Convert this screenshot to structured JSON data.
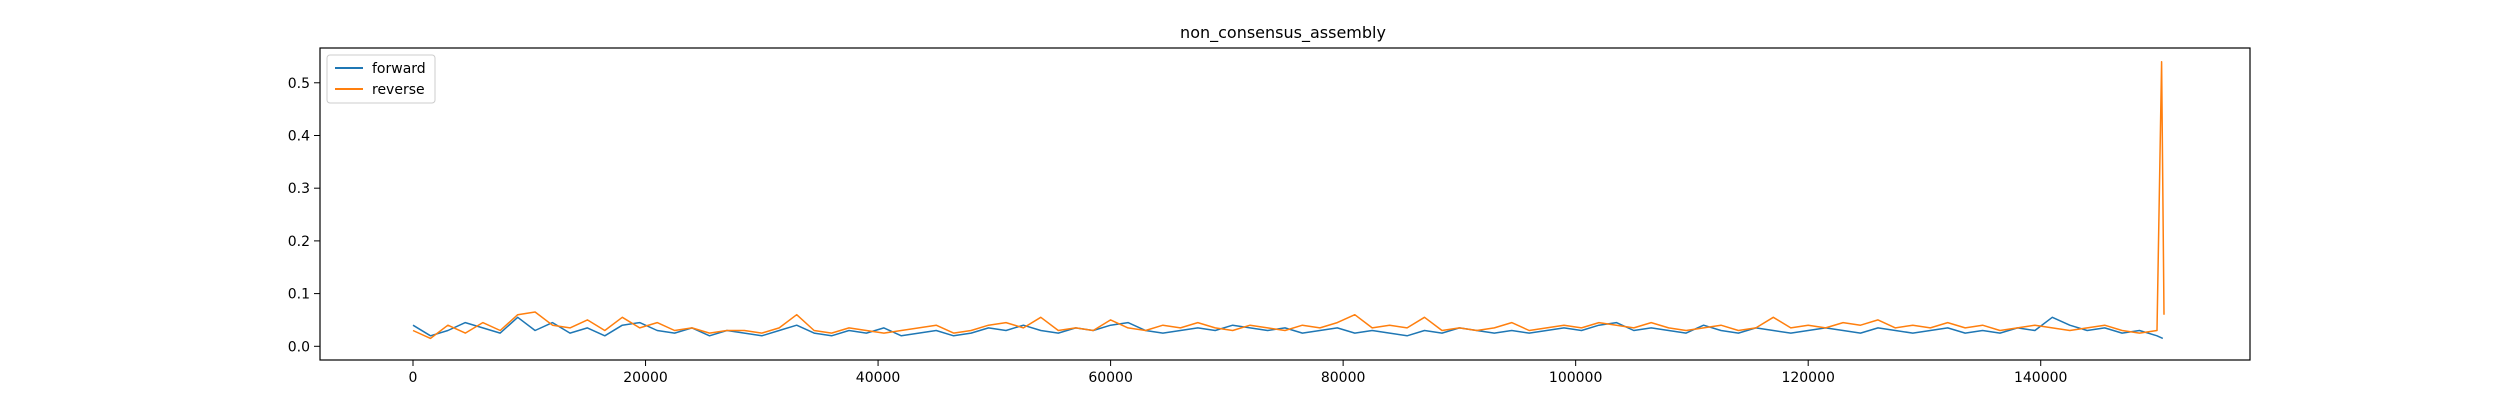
{
  "chart_data": {
    "type": "line",
    "title": "non_consensus_assembly",
    "xlabel": "",
    "ylabel": "",
    "xlim": [
      -8000,
      158000
    ],
    "ylim": [
      -0.026,
      0.566
    ],
    "x_ticks": [
      0,
      20000,
      40000,
      60000,
      80000,
      100000,
      120000,
      140000
    ],
    "x_tick_labels": [
      "0",
      "20000",
      "40000",
      "60000",
      "80000",
      "100000",
      "120000",
      "140000"
    ],
    "y_ticks": [
      0.0,
      0.1,
      0.2,
      0.3,
      0.4,
      0.5
    ],
    "y_tick_labels": [
      "0.0",
      "0.1",
      "0.2",
      "0.3",
      "0.4",
      "0.5"
    ],
    "grid": false,
    "legend": {
      "position": "top-left"
    },
    "series": [
      {
        "name": "forward",
        "color": "#1f77b4",
        "x": [
          0,
          1500,
          3000,
          4500,
          6000,
          7500,
          9000,
          10500,
          12000,
          13500,
          15000,
          16500,
          18000,
          19500,
          21000,
          22500,
          24000,
          25500,
          27000,
          28500,
          30000,
          31500,
          33000,
          34500,
          36000,
          37500,
          39000,
          40500,
          42000,
          43500,
          45000,
          46500,
          48000,
          49500,
          51000,
          52500,
          54000,
          55500,
          57000,
          58500,
          60000,
          61500,
          63000,
          64500,
          66000,
          67500,
          69000,
          70500,
          72000,
          73500,
          75000,
          76500,
          78000,
          79500,
          81000,
          82500,
          84000,
          85500,
          87000,
          88500,
          90000,
          91500,
          93000,
          94500,
          96000,
          97500,
          99000,
          100500,
          102000,
          103500,
          105000,
          106500,
          108000,
          109500,
          111000,
          112500,
          114000,
          115500,
          117000,
          118500,
          120000,
          121500,
          123000,
          124500,
          126000,
          127500,
          129000,
          130500,
          132000,
          133500,
          135000,
          136500,
          138000,
          139500,
          141000,
          142500,
          144000,
          145500,
          147000,
          148500,
          150000,
          150500
        ],
        "y": [
          0.04,
          0.02,
          0.03,
          0.045,
          0.035,
          0.025,
          0.055,
          0.03,
          0.045,
          0.025,
          0.035,
          0.02,
          0.04,
          0.045,
          0.03,
          0.025,
          0.035,
          0.02,
          0.03,
          0.025,
          0.02,
          0.03,
          0.04,
          0.025,
          0.02,
          0.03,
          0.025,
          0.035,
          0.02,
          0.025,
          0.03,
          0.02,
          0.025,
          0.035,
          0.03,
          0.04,
          0.03,
          0.025,
          0.035,
          0.03,
          0.04,
          0.045,
          0.03,
          0.025,
          0.03,
          0.035,
          0.03,
          0.04,
          0.035,
          0.03,
          0.035,
          0.025,
          0.03,
          0.035,
          0.025,
          0.03,
          0.025,
          0.02,
          0.03,
          0.025,
          0.035,
          0.03,
          0.025,
          0.03,
          0.025,
          0.03,
          0.035,
          0.03,
          0.04,
          0.045,
          0.03,
          0.035,
          0.03,
          0.025,
          0.04,
          0.03,
          0.025,
          0.035,
          0.03,
          0.025,
          0.03,
          0.035,
          0.03,
          0.025,
          0.035,
          0.03,
          0.025,
          0.03,
          0.035,
          0.025,
          0.03,
          0.025,
          0.035,
          0.03,
          0.055,
          0.04,
          0.03,
          0.035,
          0.025,
          0.03,
          0.02,
          0.015
        ]
      },
      {
        "name": "reverse",
        "color": "#ff7f0e",
        "x": [
          0,
          1500,
          3000,
          4500,
          6000,
          7500,
          9000,
          10500,
          12000,
          13500,
          15000,
          16500,
          18000,
          19500,
          21000,
          22500,
          24000,
          25500,
          27000,
          28500,
          30000,
          31500,
          33000,
          34500,
          36000,
          37500,
          39000,
          40500,
          42000,
          43500,
          45000,
          46500,
          48000,
          49500,
          51000,
          52500,
          54000,
          55500,
          57000,
          58500,
          60000,
          61500,
          63000,
          64500,
          66000,
          67500,
          69000,
          70500,
          72000,
          73500,
          75000,
          76500,
          78000,
          79500,
          81000,
          82500,
          84000,
          85500,
          87000,
          88500,
          90000,
          91500,
          93000,
          94500,
          96000,
          97500,
          99000,
          100500,
          102000,
          103500,
          105000,
          106500,
          108000,
          109500,
          111000,
          112500,
          114000,
          115500,
          117000,
          118500,
          120000,
          121500,
          123000,
          124500,
          126000,
          127500,
          129000,
          130500,
          132000,
          133500,
          135000,
          136500,
          138000,
          139500,
          141000,
          142500,
          144000,
          145500,
          147000,
          148500,
          150000,
          150400,
          150600
        ],
        "y": [
          0.03,
          0.015,
          0.04,
          0.025,
          0.045,
          0.03,
          0.06,
          0.065,
          0.04,
          0.035,
          0.05,
          0.03,
          0.055,
          0.035,
          0.045,
          0.03,
          0.035,
          0.025,
          0.03,
          0.03,
          0.025,
          0.035,
          0.06,
          0.03,
          0.025,
          0.035,
          0.03,
          0.025,
          0.03,
          0.035,
          0.04,
          0.025,
          0.03,
          0.04,
          0.045,
          0.035,
          0.055,
          0.03,
          0.035,
          0.03,
          0.05,
          0.035,
          0.03,
          0.04,
          0.035,
          0.045,
          0.035,
          0.03,
          0.04,
          0.035,
          0.03,
          0.04,
          0.035,
          0.045,
          0.06,
          0.035,
          0.04,
          0.035,
          0.055,
          0.03,
          0.035,
          0.03,
          0.035,
          0.045,
          0.03,
          0.035,
          0.04,
          0.035,
          0.045,
          0.04,
          0.035,
          0.045,
          0.035,
          0.03,
          0.035,
          0.04,
          0.03,
          0.035,
          0.055,
          0.035,
          0.04,
          0.035,
          0.045,
          0.04,
          0.05,
          0.035,
          0.04,
          0.035,
          0.045,
          0.035,
          0.04,
          0.03,
          0.035,
          0.04,
          0.035,
          0.03,
          0.035,
          0.04,
          0.03,
          0.025,
          0.03,
          0.54,
          0.06
        ]
      }
    ]
  }
}
